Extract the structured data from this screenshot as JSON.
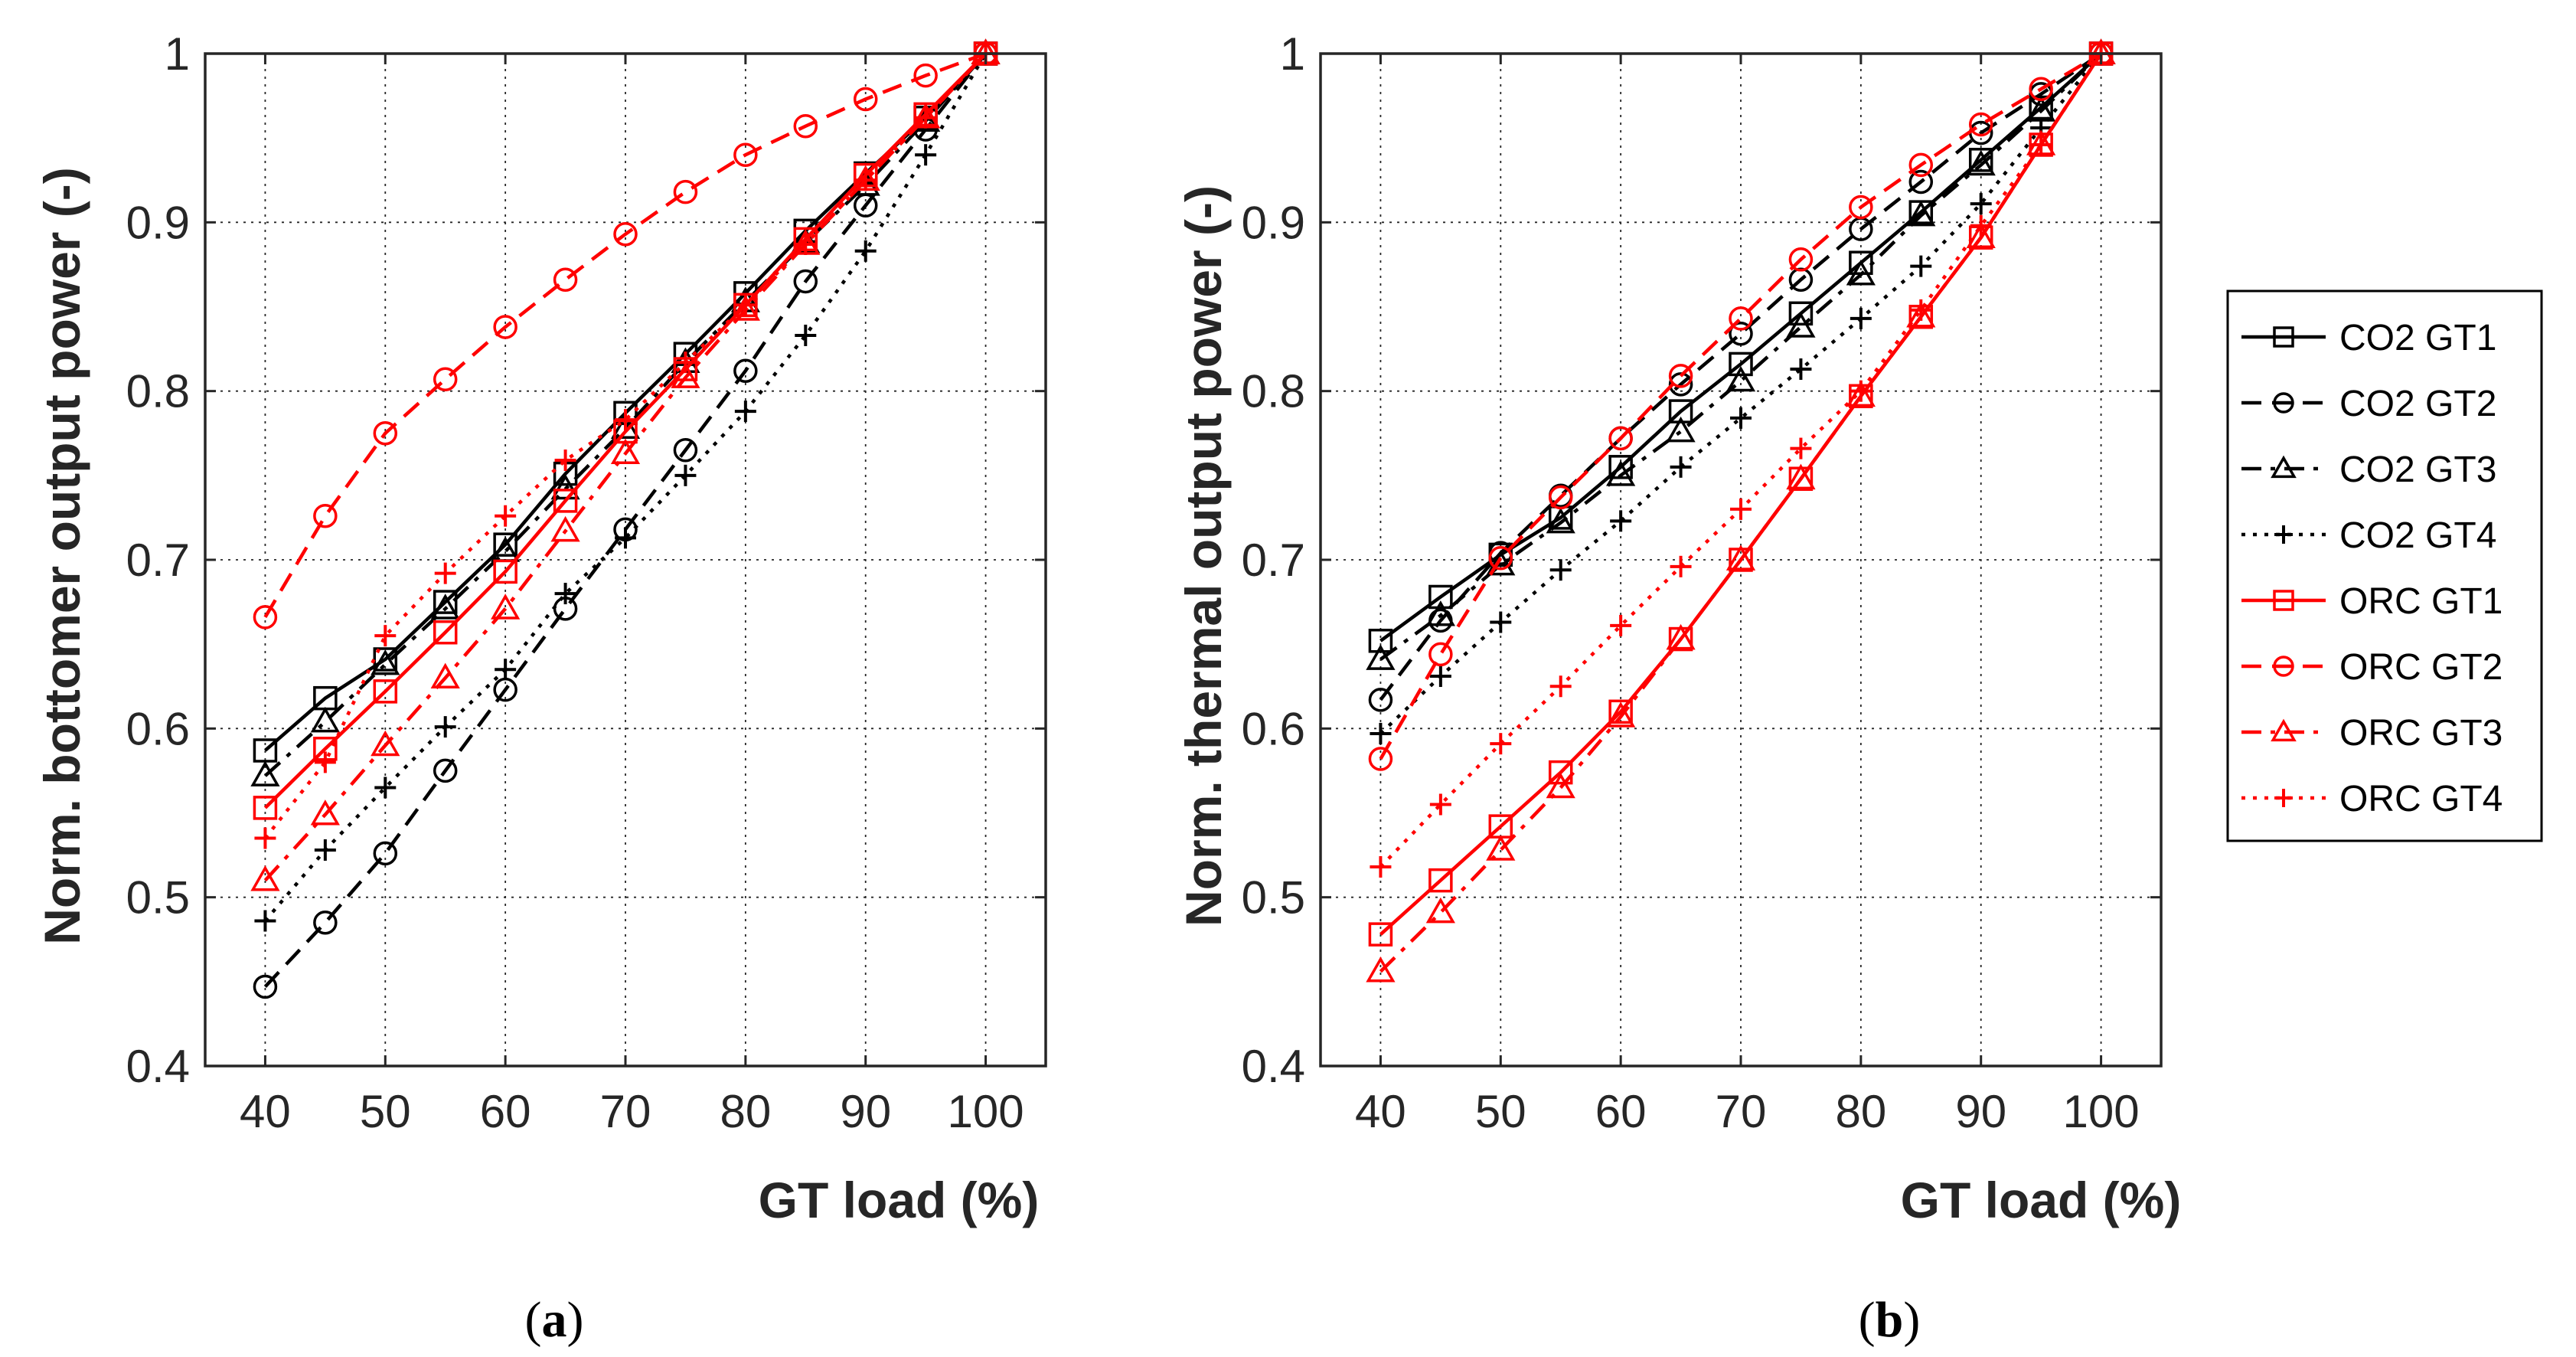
{
  "figure": {
    "caption_a": {
      "open": "(",
      "letter": "a",
      "close": ")"
    },
    "caption_b": {
      "open": "(",
      "letter": "b",
      "close": ")"
    }
  },
  "legend": {
    "entries": [
      {
        "label": "CO2 GT1",
        "color": "#000000",
        "marker": "square",
        "dash": "solid"
      },
      {
        "label": "CO2 GT2",
        "color": "#000000",
        "marker": "circle",
        "dash": "dashed"
      },
      {
        "label": "CO2 GT3",
        "color": "#000000",
        "marker": "triangle",
        "dash": "dashdot"
      },
      {
        "label": "CO2 GT4",
        "color": "#000000",
        "marker": "plus",
        "dash": "dotted"
      },
      {
        "label": "ORC GT1",
        "color": "#ff0000",
        "marker": "square",
        "dash": "solid"
      },
      {
        "label": "ORC GT2",
        "color": "#ff0000",
        "marker": "circle",
        "dash": "dashed"
      },
      {
        "label": "ORC GT3",
        "color": "#ff0000",
        "marker": "triangle",
        "dash": "dashdot"
      },
      {
        "label": "ORC GT4",
        "color": "#ff0000",
        "marker": "plus",
        "dash": "dotted"
      }
    ]
  },
  "chart_data": [
    {
      "id": "a",
      "type": "line",
      "title": "",
      "xlabel": "GT load (%)",
      "ylabel": "Norm. bottomer output power (-)",
      "xlim": [
        35,
        105
      ],
      "ylim": [
        0.4,
        1.0
      ],
      "xticks": [
        40,
        50,
        60,
        70,
        80,
        90,
        100
      ],
      "yticks": [
        0.4,
        0.5,
        0.6,
        0.7,
        0.8,
        0.9,
        1.0
      ],
      "ytick_labels": [
        "0.4",
        "0.5",
        "0.6",
        "0.7",
        "0.8",
        "0.9",
        "1"
      ],
      "grid": true,
      "x": [
        40,
        45,
        50,
        55,
        60,
        65,
        70,
        75,
        80,
        85,
        90,
        95,
        100
      ],
      "series": [
        {
          "name": "CO2 GT1",
          "values": [
            0.587,
            0.618,
            0.641,
            0.675,
            0.709,
            0.751,
            0.787,
            0.822,
            0.858,
            0.895,
            0.929,
            0.962,
            1.0
          ]
        },
        {
          "name": "CO2 GT2",
          "values": [
            0.447,
            0.485,
            0.526,
            0.575,
            0.623,
            0.671,
            0.718,
            0.765,
            0.812,
            0.865,
            0.91,
            0.955,
            1.0
          ]
        },
        {
          "name": "CO2 GT3",
          "values": [
            0.572,
            0.604,
            0.638,
            0.671,
            0.705,
            0.742,
            0.778,
            0.817,
            0.853,
            0.888,
            0.922,
            0.96,
            1.0
          ]
        },
        {
          "name": "CO2 GT4",
          "values": [
            0.486,
            0.528,
            0.565,
            0.601,
            0.635,
            0.68,
            0.713,
            0.75,
            0.788,
            0.833,
            0.883,
            0.94,
            1.0
          ]
        },
        {
          "name": "ORC GT1",
          "values": [
            0.553,
            0.588,
            0.622,
            0.657,
            0.693,
            0.735,
            0.776,
            0.813,
            0.851,
            0.89,
            0.928,
            0.964,
            1.0
          ]
        },
        {
          "name": "ORC GT2",
          "values": [
            0.666,
            0.726,
            0.775,
            0.807,
            0.838,
            0.866,
            0.893,
            0.918,
            0.94,
            0.957,
            0.973,
            0.987,
            1.0
          ]
        },
        {
          "name": "ORC GT3",
          "values": [
            0.51,
            0.549,
            0.59,
            0.63,
            0.671,
            0.717,
            0.763,
            0.808,
            0.848,
            0.887,
            0.925,
            0.962,
            1.0
          ]
        },
        {
          "name": "ORC GT4",
          "values": [
            0.535,
            0.58,
            0.655,
            0.692,
            0.726,
            0.759,
            0.783,
            0.817,
            0.851,
            0.887,
            0.925,
            0.962,
            1.0
          ]
        }
      ]
    },
    {
      "id": "b",
      "type": "line",
      "title": "",
      "xlabel": "GT load (%)",
      "ylabel": "Norm. thermal output power (-)",
      "xlim": [
        35,
        105
      ],
      "ylim": [
        0.4,
        1.0
      ],
      "xticks": [
        40,
        50,
        60,
        70,
        80,
        90,
        100
      ],
      "yticks": [
        0.4,
        0.5,
        0.6,
        0.7,
        0.8,
        0.9,
        1.0
      ],
      "ytick_labels": [
        "0.4",
        "0.5",
        "0.6",
        "0.7",
        "0.8",
        "0.9",
        "1"
      ],
      "grid": true,
      "x": [
        40,
        45,
        50,
        55,
        60,
        65,
        70,
        75,
        80,
        85,
        90,
        95,
        100
      ],
      "series": [
        {
          "name": "CO2 GT1",
          "values": [
            0.652,
            0.678,
            0.703,
            0.725,
            0.755,
            0.788,
            0.816,
            0.846,
            0.876,
            0.906,
            0.937,
            0.968,
            1.0
          ]
        },
        {
          "name": "CO2 GT2",
          "values": [
            0.617,
            0.664,
            0.704,
            0.738,
            0.772,
            0.804,
            0.834,
            0.866,
            0.896,
            0.924,
            0.953,
            0.976,
            1.0
          ]
        },
        {
          "name": "CO2 GT3",
          "values": [
            0.641,
            0.667,
            0.697,
            0.722,
            0.75,
            0.776,
            0.806,
            0.838,
            0.869,
            0.904,
            0.934,
            0.966,
            1.0
          ]
        },
        {
          "name": "CO2 GT4",
          "values": [
            0.597,
            0.631,
            0.663,
            0.694,
            0.723,
            0.755,
            0.784,
            0.813,
            0.843,
            0.874,
            0.911,
            0.956,
            1.0
          ]
        },
        {
          "name": "ORC GT1",
          "values": [
            0.478,
            0.51,
            0.542,
            0.574,
            0.61,
            0.653,
            0.7,
            0.748,
            0.797,
            0.844,
            0.891,
            0.946,
            1.0
          ]
        },
        {
          "name": "ORC GT2",
          "values": [
            0.582,
            0.644,
            0.701,
            0.737,
            0.772,
            0.809,
            0.843,
            0.878,
            0.909,
            0.934,
            0.958,
            0.979,
            1.0
          ]
        },
        {
          "name": "ORC GT3",
          "values": [
            0.456,
            0.491,
            0.528,
            0.565,
            0.607,
            0.653,
            0.7,
            0.748,
            0.797,
            0.844,
            0.891,
            0.946,
            1.0
          ]
        },
        {
          "name": "ORC GT4",
          "values": [
            0.518,
            0.555,
            0.591,
            0.625,
            0.661,
            0.696,
            0.73,
            0.766,
            0.8,
            0.848,
            0.898,
            0.946,
            1.0
          ]
        }
      ]
    }
  ]
}
